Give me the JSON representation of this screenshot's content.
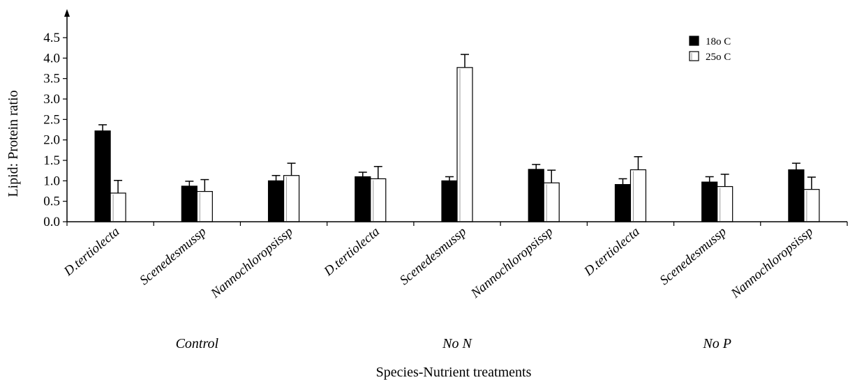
{
  "chart_data": {
    "type": "bar",
    "title": "",
    "ylabel": "Lipid: Protein ratio",
    "xlabel": "Species-Nutrient treatments",
    "ylim": [
      0,
      4.5
    ],
    "yticks": [
      "0.0",
      "0.5",
      "1.0",
      "1.5",
      "2.0",
      "2.5",
      "3.0",
      "3.5",
      "4.0",
      "4.5"
    ],
    "legend_position": "top-right",
    "categories": [
      "D.tertiolecta",
      "Scenedesmussp",
      "Nannochloropsissp",
      "D.tertiolecta",
      "Scenedesmussp",
      "Nannochloropsissp",
      "D.tertiolecta",
      "Scenedesmussp",
      "Nannochloropsissp"
    ],
    "groups": [
      {
        "label": "Control",
        "span": [
          0,
          2
        ]
      },
      {
        "label": "No N",
        "span": [
          3,
          5
        ]
      },
      {
        "label": "No P",
        "span": [
          6,
          8
        ]
      }
    ],
    "series": [
      {
        "name": "18o C",
        "color": "#000000",
        "values": [
          2.22,
          0.87,
          1.0,
          1.1,
          1.0,
          1.28,
          0.91,
          0.97,
          1.27
        ],
        "errors": [
          0.15,
          0.12,
          0.13,
          0.11,
          0.1,
          0.12,
          0.14,
          0.13,
          0.16
        ]
      },
      {
        "name": "25o C",
        "color": "#ffffff",
        "values": [
          0.7,
          0.74,
          1.13,
          1.05,
          3.77,
          0.95,
          1.27,
          0.86,
          0.79
        ],
        "errors": [
          0.31,
          0.29,
          0.3,
          0.3,
          0.32,
          0.31,
          0.32,
          0.3,
          0.3
        ]
      }
    ]
  }
}
